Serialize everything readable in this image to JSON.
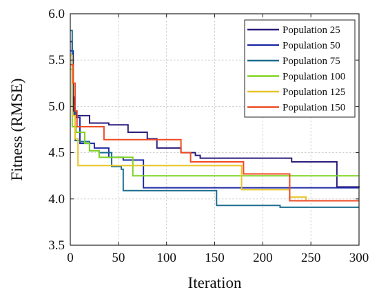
{
  "chart_data": {
    "type": "line",
    "xlabel": "Iteration",
    "ylabel": "Fitness (RMSE)",
    "xlim": [
      0,
      300
    ],
    "ylim": [
      3.5,
      6.0
    ],
    "x_ticks": [
      "0",
      "50",
      "100",
      "150",
      "200",
      "250",
      "300"
    ],
    "y_ticks": [
      "3.5",
      "4.0",
      "4.5",
      "5.0",
      "5.5",
      "6.0"
    ],
    "x_tick_values": [
      0,
      50,
      100,
      150,
      200,
      250,
      300
    ],
    "y_tick_values": [
      3.5,
      4.0,
      4.5,
      5.0,
      5.5,
      6.0
    ],
    "grid": true,
    "step": true,
    "legend_position": "top-right",
    "series": [
      {
        "name": "Population 25",
        "color": "#2b1c7c",
        "x": [
          0,
          2,
          4,
          20,
          40,
          60,
          80,
          90,
          115,
          120,
          130,
          135,
          180,
          230,
          277,
          300
        ],
        "y": [
          5.7,
          5.1,
          4.9,
          4.82,
          4.8,
          4.72,
          4.65,
          4.55,
          4.5,
          4.5,
          4.47,
          4.44,
          4.44,
          4.4,
          4.13,
          4.12
        ]
      },
      {
        "name": "Population 50",
        "color": "#1f2aa6",
        "x": [
          0,
          3,
          6,
          10,
          25,
          40,
          55,
          76,
          180,
          300
        ],
        "y": [
          5.6,
          4.95,
          4.88,
          4.6,
          4.55,
          4.45,
          4.42,
          4.12,
          4.12,
          4.12
        ]
      },
      {
        "name": "Population 75",
        "color": "#1b6d8e",
        "x": [
          0,
          2,
          5,
          10,
          20,
          30,
          43,
          53,
          55,
          152,
          218,
          300
        ],
        "y": [
          5.82,
          5.0,
          4.63,
          4.62,
          4.52,
          4.5,
          4.35,
          4.32,
          4.09,
          3.93,
          3.91,
          3.91
        ]
      },
      {
        "name": "Population 100",
        "color": "#7ed321",
        "x": [
          0,
          2,
          6,
          15,
          20,
          30,
          65,
          180,
          300
        ],
        "y": [
          5.4,
          4.78,
          4.72,
          4.6,
          4.52,
          4.45,
          4.25,
          4.25,
          4.25
        ]
      },
      {
        "name": "Population 125",
        "color": "#e8c52a",
        "x": [
          0,
          2,
          5,
          8,
          130,
          178,
          228,
          245,
          300
        ],
        "y": [
          5.55,
          4.9,
          4.65,
          4.36,
          4.36,
          4.1,
          4.02,
          3.98,
          3.98
        ]
      },
      {
        "name": "Population 150",
        "color": "#ef4a23",
        "x": [
          0,
          3,
          5,
          7,
          35,
          115,
          125,
          180,
          228,
          300
        ],
        "y": [
          5.45,
          5.25,
          4.95,
          4.78,
          4.64,
          4.5,
          4.4,
          4.27,
          3.98,
          3.98
        ]
      }
    ]
  }
}
